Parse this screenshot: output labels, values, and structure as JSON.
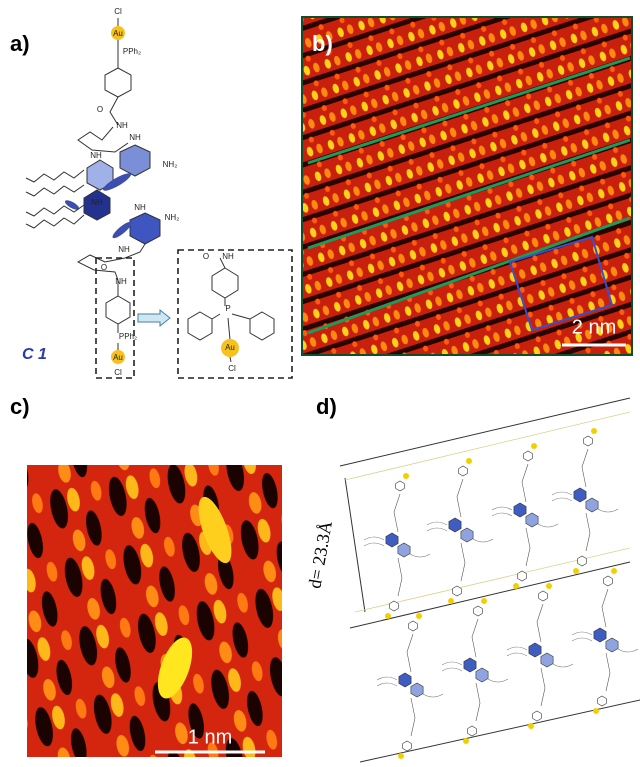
{
  "panel_a": {
    "label": "a)",
    "compound": "C 1",
    "atoms": [
      "Cl",
      "Au",
      "PPh₂",
      "O",
      "NH",
      "NH",
      "NH",
      "NH₂",
      "NH",
      "NH",
      "NH₂",
      "NH",
      "O",
      "NH",
      "PPh₂",
      "Au",
      "Cl"
    ],
    "inset_atoms": [
      "O",
      "NH",
      "P",
      "Au",
      "Cl"
    ]
  },
  "panel_b": {
    "label": "b)",
    "scale_bar": "2 nm"
  },
  "panel_c": {
    "label": "c)",
    "scale_bar": "1 nm"
  },
  "panel_d": {
    "label": "d)",
    "spacing": "d= 23.3Å"
  }
}
